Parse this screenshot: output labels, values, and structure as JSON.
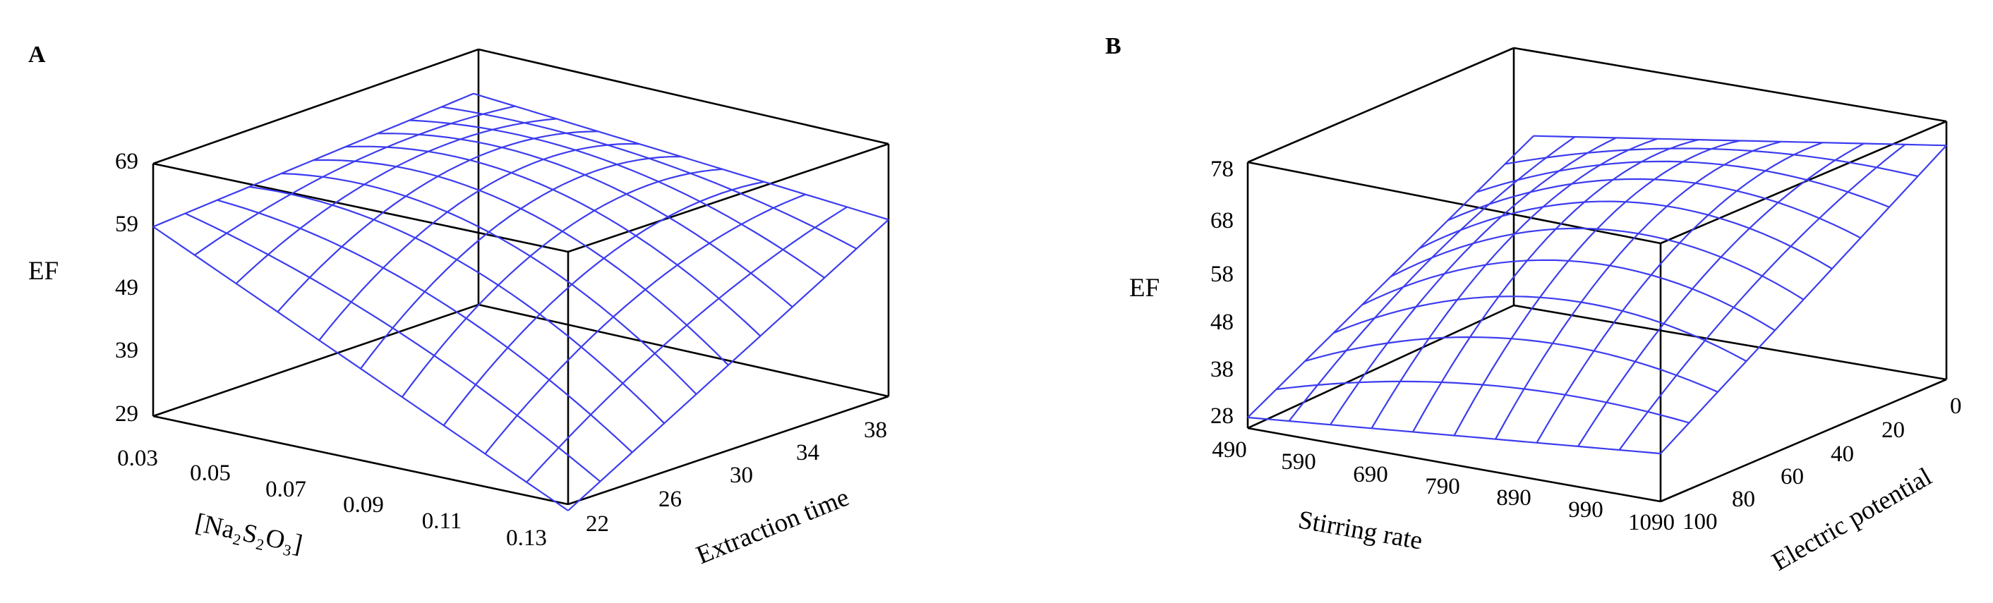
{
  "chart_data": [
    {
      "type": "surface",
      "panel_label": "A",
      "x_title": "[Na₂S₂O₃]",
      "y_title": "Extraction time",
      "z_title": "EF",
      "x_ticks": [
        "0.03",
        "0.05",
        "0.07",
        "0.09",
        "0.11",
        "0.13"
      ],
      "y_ticks": [
        "22",
        "26",
        "30",
        "34",
        "38"
      ],
      "z_ticks": [
        "29",
        "39",
        "49",
        "59",
        "69"
      ],
      "xlim": [
        0.03,
        0.13
      ],
      "ylim": [
        22,
        38
      ],
      "zlim": [
        29,
        69
      ],
      "grid": "10x10 wireframe",
      "surface_corners": {
        "x0.03_y22": 59,
        "x0.13_y22": 28,
        "x0.03_y38": 63,
        "x0.13_y38": 57
      },
      "surface_max": 66
    },
    {
      "type": "surface",
      "panel_label": "B",
      "x_title": "Stirring rate",
      "y_title": "Electric potential",
      "z_title": "EF",
      "x_ticks": [
        "490",
        "590",
        "690",
        "790",
        "890",
        "990",
        "1090"
      ],
      "y_ticks": [
        "100",
        "80",
        "60",
        "40",
        "20",
        "0"
      ],
      "z_ticks": [
        "28",
        "38",
        "48",
        "58",
        "68",
        "78"
      ],
      "xlim": [
        490,
        1090
      ],
      "ylim": [
        100,
        0
      ],
      "zlim": [
        28,
        78
      ],
      "grid": "10x10 wireframe",
      "surface_corners": {
        "x490_y100": 30,
        "x1090_y100": 37,
        "x490_y0": 60,
        "x1090_y0": 72
      },
      "surface_max": 72
    }
  ]
}
